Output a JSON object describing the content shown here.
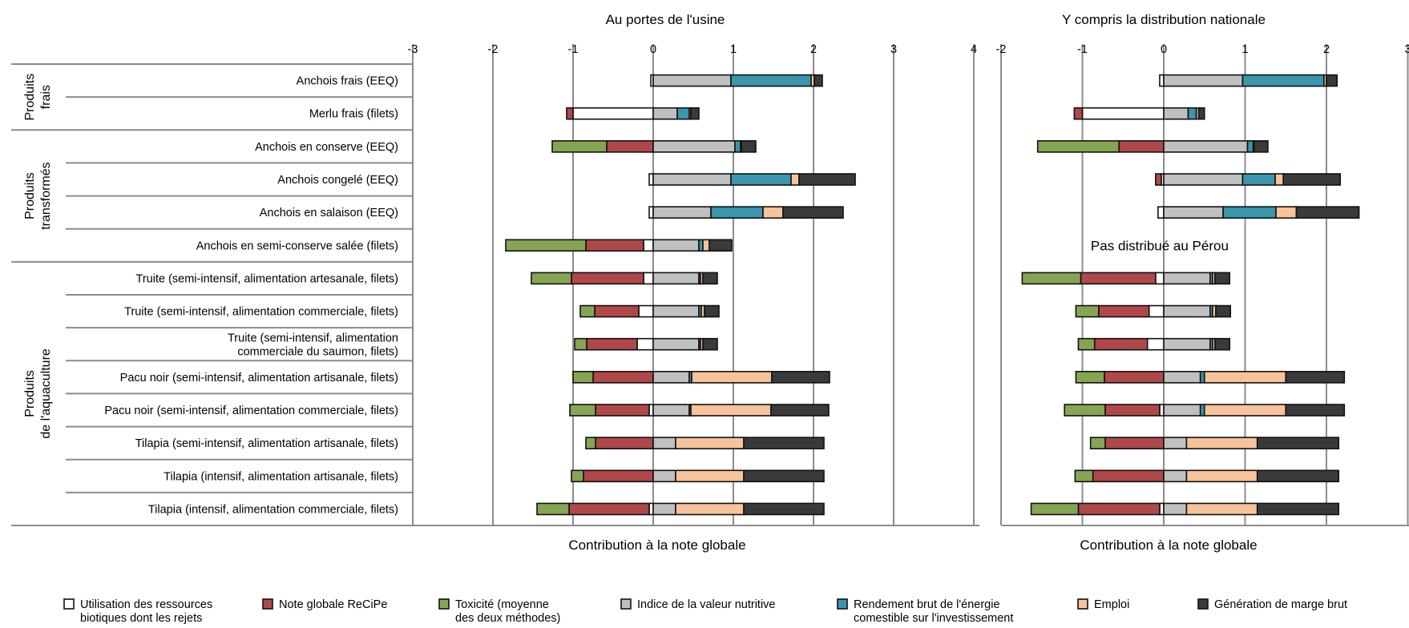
{
  "chart_data": {
    "type": "bar",
    "stacked": true,
    "orientation": "horizontal",
    "colors": {
      "Utilisation des ressources biotiques dont les rejets": "#ffffff",
      "Note globale ReCiPe": "#b0484a",
      "Toxicité (moyenne des deux méthodes)": "#86a553",
      "Indice de la valeur nutritive": "#c0c0c0",
      "Rendement brut de l'énergie comestible sur l'investissement": "#3b96ad",
      "Emploi": "#f6c39a",
      "Génération de marge brut": "#3a3a3a",
      "axis": "#8c8c8c"
    },
    "groups": [
      {
        "label": "Produits frais",
        "rows": [
          0,
          1
        ]
      },
      {
        "label": "Produits transformés",
        "rows": [
          2,
          3,
          4,
          5
        ]
      },
      {
        "label": "Produits de l'aquaculture",
        "rows": [
          6,
          7,
          8,
          9,
          10,
          11,
          12,
          13
        ]
      }
    ],
    "categories": [
      "Anchois frais (EEQ)",
      "Merlu frais (filets)",
      "Anchois en conserve (EEQ)",
      "Anchois congelé (EEQ)",
      "Anchois en salaison (EEQ)",
      "Anchois en semi-conserve salée (filets)",
      "Truite (semi-intensif, alimentation artesanale, filets)",
      "Truite (semi-intensif, alimentation commerciale, filets)",
      "Truite (semi-intensif, alimentation commerciale du saumon, filets)",
      "Pacu noir (semi-intensif, alimentation artisanale, filets)",
      "Pacu noir (semi-intensif, alimentation commerciale, filets)",
      "Tilapia (semi-intensif, alimentation artisanale, filets)",
      "Tilapia (intensif, alimentation artisanale, filets)",
      "Tilapia (intensif, alimentation commerciale, filets)"
    ],
    "legend": [
      "Utilisation des ressources biotiques dont les rejets",
      "Note globale ReCiPe",
      "Toxicité (moyenne des deux méthodes)",
      "Indice de la valeur nutritive",
      "Rendement brut de l'énergie comestible sur l'investissement",
      "Emploi",
      "Génération de marge brut"
    ],
    "legend_position": "bottom",
    "grid": true,
    "panels": [
      {
        "title": "Au portes de l'usine",
        "xlabel": "Contribution à la note globale",
        "xlim": [
          -3,
          4
        ],
        "xticks": [
          -3,
          -2,
          -1,
          0,
          1,
          2,
          3,
          4
        ],
        "note": "",
        "series": [
          {
            "name": "Utilisation des ressources biotiques dont les rejets",
            "values": [
              -0.03,
              -1.0,
              0,
              -0.05,
              -0.05,
              -0.12,
              -0.12,
              -0.18,
              -0.2,
              0,
              -0.05,
              0,
              0,
              -0.05
            ]
          },
          {
            "name": "Note globale ReCiPe",
            "values": [
              0,
              -0.08,
              -0.58,
              0,
              0,
              -0.72,
              -0.9,
              -0.55,
              -0.63,
              -0.75,
              -0.67,
              -0.72,
              -0.87,
              -1.0
            ]
          },
          {
            "name": "Toxicité (moyenne des deux méthodes)",
            "values": [
              0,
              0,
              -0.68,
              0,
              0,
              -1.0,
              -0.5,
              -0.18,
              -0.15,
              -0.25,
              -0.32,
              -0.12,
              -0.15,
              -0.4
            ]
          },
          {
            "name": "Indice de la valeur nutritive",
            "values": [
              0.97,
              0.3,
              1.02,
              0.97,
              0.72,
              0.57,
              0.57,
              0.57,
              0.57,
              0.45,
              0.45,
              0.28,
              0.28,
              0.28
            ]
          },
          {
            "name": "Rendement brut de l'énergie comestible sur l'investissement",
            "values": [
              1.0,
              0.15,
              0.07,
              0.75,
              0.65,
              0.05,
              0.02,
              0.03,
              0.02,
              0.03,
              0.02,
              0.0,
              0.0,
              0.0
            ]
          },
          {
            "name": "Emploi",
            "values": [
              0.04,
              0.02,
              0.01,
              0.1,
              0.25,
              0.08,
              0.03,
              0.04,
              0.03,
              1.0,
              1.0,
              0.85,
              0.85,
              0.85
            ]
          },
          {
            "name": "Génération de marge brut",
            "values": [
              0.1,
              0.1,
              0.18,
              0.7,
              0.75,
              0.28,
              0.18,
              0.18,
              0.18,
              0.72,
              0.72,
              1.0,
              1.0,
              1.0
            ]
          }
        ]
      },
      {
        "title": "Y compris la distribution nationale",
        "xlabel": "Contribution à la note globale",
        "xlim": [
          -2,
          3
        ],
        "xticks": [
          -2,
          -1,
          0,
          1,
          2,
          3
        ],
        "note": "Pas distribué au Pérou",
        "missing_rows": [
          5
        ],
        "series": [
          {
            "name": "Utilisation des ressources biotiques dont les rejets",
            "values": [
              -0.05,
              -1.0,
              0,
              -0.03,
              -0.07,
              0,
              -0.1,
              -0.18,
              -0.2,
              0,
              -0.05,
              0,
              0,
              -0.05
            ]
          },
          {
            "name": "Note globale ReCiPe",
            "values": [
              0,
              -0.1,
              -0.55,
              -0.07,
              0,
              0,
              -0.92,
              -0.62,
              -0.65,
              -0.73,
              -0.67,
              -0.72,
              -0.87,
              -1.0
            ]
          },
          {
            "name": "Toxicité (moyenne des deux méthodes)",
            "values": [
              0,
              0,
              -1.0,
              0,
              0,
              0,
              -0.72,
              -0.28,
              -0.2,
              -0.35,
              -0.5,
              -0.18,
              -0.22,
              -0.58
            ]
          },
          {
            "name": "Indice de la valeur nutritive",
            "values": [
              0.97,
              0.3,
              1.03,
              0.97,
              0.73,
              0,
              0.57,
              0.57,
              0.57,
              0.45,
              0.45,
              0.28,
              0.28,
              0.28
            ]
          },
          {
            "name": "Rendement brut de l'énergie comestible sur l'investissement",
            "values": [
              1.0,
              0.1,
              0.07,
              0.4,
              0.65,
              0,
              0.03,
              0.03,
              0.03,
              0.05,
              0.05,
              0.0,
              0.0,
              0.0
            ]
          },
          {
            "name": "Emploi",
            "values": [
              0.03,
              0.03,
              0.01,
              0.1,
              0.25,
              0,
              0.03,
              0.04,
              0.03,
              1.0,
              1.0,
              0.87,
              0.87,
              0.87
            ]
          },
          {
            "name": "Génération de marge brut",
            "values": [
              0.13,
              0.07,
              0.17,
              0.7,
              0.77,
              0,
              0.18,
              0.18,
              0.18,
              0.72,
              0.72,
              1.0,
              1.0,
              1.0
            ]
          }
        ]
      }
    ]
  }
}
